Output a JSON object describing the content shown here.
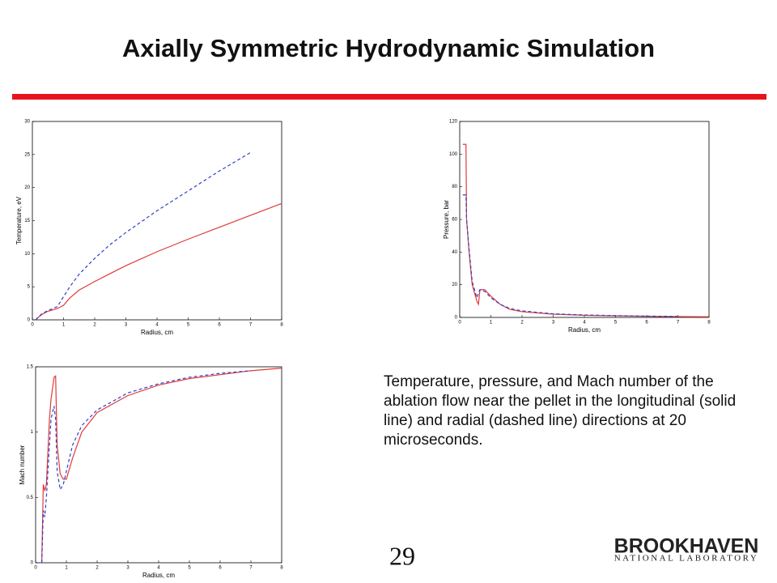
{
  "title": "Axially Symmetric Hydrodynamic Simulation",
  "caption": "Temperature, pressure, and Mach number of the ablation flow near the pellet in the longitudinal (solid line) and radial (dashed line) directions at 20 microseconds.",
  "page_number": "29",
  "logo": {
    "name": "BROOKHAVEN",
    "subtitle": "NATIONAL LABORATORY"
  },
  "chart_data": [
    {
      "type": "line",
      "x_label": "Radius, cm",
      "y_label": "Temperature, eV",
      "xlim": [
        0,
        8
      ],
      "xticks": [
        0,
        1,
        2,
        3,
        4,
        5,
        6,
        7,
        8
      ],
      "ylim": [
        0,
        30
      ],
      "yticks": [
        0,
        5,
        10,
        15,
        20,
        25,
        30
      ],
      "x": [
        0.1,
        0.3,
        0.5,
        0.8,
        1,
        1.2,
        1.5,
        2,
        2.5,
        3,
        4,
        5,
        6,
        7,
        8
      ],
      "series": [
        {
          "color": "#e03a3a",
          "style": "solid",
          "values": [
            0,
            0.8,
            1.3,
            1.7,
            2.2,
            3.3,
            4.5,
            5.8,
            7,
            8.2,
            10.3,
            12.2,
            14,
            15.8,
            17.6
          ]
        },
        {
          "color": "#3040c8",
          "style": "dashed",
          "values": [
            0,
            0.9,
            1.4,
            2,
            3.5,
            5,
            6.9,
            9.3,
            11.4,
            13.2,
            16.5,
            19.5,
            22.5,
            25.3,
            null
          ]
        }
      ]
    },
    {
      "type": "line",
      "x_label": "Radius, cm",
      "y_label": "Pressure, bar",
      "xlim": [
        0,
        8
      ],
      "xticks": [
        0,
        1,
        2,
        3,
        4,
        5,
        6,
        7,
        8
      ],
      "ylim": [
        0,
        120
      ],
      "yticks": [
        0,
        20,
        40,
        60,
        80,
        100,
        120
      ],
      "x": [
        0.1,
        0.2,
        0.22,
        0.3,
        0.4,
        0.55,
        0.6,
        0.65,
        0.8,
        1,
        1.3,
        1.6,
        2,
        3,
        4,
        5,
        6,
        7,
        8
      ],
      "series": [
        {
          "color": "#e03a3a",
          "style": "solid",
          "values": [
            106,
            106,
            60,
            40,
            20,
            10,
            8,
            17,
            17,
            13,
            8,
            5,
            3.5,
            2,
            1.3,
            1,
            0.7,
            0.5,
            0.4
          ]
        },
        {
          "color": "#3040c8",
          "style": "dashed",
          "values": [
            75,
            75,
            60,
            42,
            22,
            12,
            15,
            17,
            16,
            12,
            8,
            5.5,
            4,
            2.2,
            1.5,
            1.1,
            0.8,
            0.6,
            null
          ]
        }
      ]
    },
    {
      "type": "line",
      "x_label": "Radius, cm",
      "y_label": "Mach number",
      "xlim": [
        0,
        8
      ],
      "xticks": [
        0,
        1,
        2,
        3,
        4,
        5,
        6,
        7,
        8
      ],
      "ylim": [
        0,
        1.5
      ],
      "yticks": [
        0,
        0.5,
        1,
        1.5
      ],
      "x": [
        0.2,
        0.25,
        0.3,
        0.35,
        0.45,
        0.5,
        0.6,
        0.65,
        0.7,
        0.8,
        0.9,
        1,
        1.2,
        1.5,
        2,
        3,
        4,
        5,
        6,
        7,
        8
      ],
      "series": [
        {
          "color": "#e03a3a",
          "style": "solid",
          "values": [
            0,
            0.6,
            0.55,
            0.6,
            1.1,
            1.25,
            1.42,
            1.43,
            0.9,
            0.68,
            0.64,
            0.64,
            0.8,
            1,
            1.15,
            1.28,
            1.36,
            1.41,
            1.44,
            1.47,
            1.49
          ]
        },
        {
          "color": "#3040c8",
          "style": "dashed",
          "values": [
            0,
            0.4,
            0.35,
            0.5,
            0.9,
            1.1,
            1.2,
            1.1,
            0.7,
            0.56,
            0.6,
            0.7,
            0.9,
            1.05,
            1.17,
            1.3,
            1.37,
            1.42,
            1.45,
            1.47,
            null
          ]
        }
      ]
    }
  ]
}
